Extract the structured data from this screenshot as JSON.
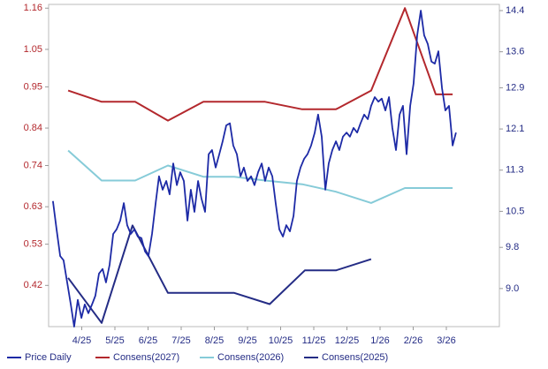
{
  "chart_data": {
    "type": "line",
    "xlim": [
      0,
      13.6
    ],
    "xticks": [
      {
        "value": 1,
        "label": "4/25"
      },
      {
        "value": 2,
        "label": "5/25"
      },
      {
        "value": 3,
        "label": "6/25"
      },
      {
        "value": 4,
        "label": "7/25"
      },
      {
        "value": 5,
        "label": "8/25"
      },
      {
        "value": 6,
        "label": "9/25"
      },
      {
        "value": 7,
        "label": "10/25"
      },
      {
        "value": 8,
        "label": "11/25"
      },
      {
        "value": 9,
        "label": "12/25"
      },
      {
        "value": 10,
        "label": "1/26"
      },
      {
        "value": 11,
        "label": "2/26"
      },
      {
        "value": 12,
        "label": "3/26"
      }
    ],
    "ylim": [
      0.31,
      1.17
    ],
    "yticks": [
      0.42,
      0.53,
      0.63,
      0.74,
      0.84,
      0.95,
      1.05,
      1.16
    ],
    "y2lim": [
      8.26,
      14.52
    ],
    "y2ticks": [
      {
        "value": 9,
        "label": "9.0"
      },
      9.8,
      10.5,
      11.3,
      12.1,
      12.9,
      13.6,
      14.4
    ],
    "grid": false,
    "legend": "bottom",
    "series": [
      {
        "name": "Price Daily",
        "color": "#1d2aa6",
        "axis": "y2",
        "x": [
          0.13,
          0.24,
          0.35,
          0.45,
          0.56,
          0.67,
          0.77,
          0.88,
          0.99,
          1.09,
          1.2,
          1.31,
          1.41,
          1.52,
          1.63,
          1.73,
          1.84,
          1.95,
          2.05,
          2.16,
          2.27,
          2.37,
          2.48,
          2.59,
          2.69,
          2.8,
          2.91,
          3.01,
          3.12,
          3.23,
          3.33,
          3.44,
          3.55,
          3.65,
          3.76,
          3.87,
          3.97,
          4.08,
          4.19,
          4.29,
          4.4,
          4.51,
          4.61,
          4.72,
          4.83,
          4.93,
          5.04,
          5.15,
          5.25,
          5.36,
          5.47,
          5.57,
          5.68,
          5.79,
          5.89,
          6,
          6.11,
          6.21,
          6.32,
          6.43,
          6.53,
          6.64,
          6.75,
          6.85,
          6.96,
          7.07,
          7.17,
          7.28,
          7.39,
          7.49,
          7.6,
          7.71,
          7.81,
          7.92,
          8.03,
          8.13,
          8.24,
          8.35,
          8.45,
          8.56,
          8.67,
          8.77,
          8.88,
          8.99,
          9.09,
          9.2,
          9.31,
          9.41,
          9.52,
          9.63,
          9.73,
          9.84,
          9.95,
          10.05,
          10.16,
          10.27,
          10.37,
          10.48,
          10.59,
          10.69,
          10.8,
          10.91,
          11.01,
          11.12,
          11.23,
          11.33,
          11.44,
          11.55,
          11.65,
          11.76,
          11.87,
          11.97,
          12.08,
          12.19,
          12.29
        ],
        "values": [
          10.7,
          10.15,
          9.63,
          9.55,
          9.12,
          8.69,
          8.26,
          8.78,
          8.43,
          8.69,
          8.52,
          8.69,
          8.86,
          9.29,
          9.38,
          9.12,
          9.46,
          10.06,
          10.15,
          10.32,
          10.66,
          10.23,
          10.06,
          10.15,
          10.01,
          9.98,
          9.72,
          9.63,
          10.06,
          10.66,
          11.18,
          10.92,
          11.09,
          10.83,
          11.43,
          11.01,
          11.26,
          11.09,
          10.32,
          10.92,
          10.49,
          11.09,
          10.75,
          10.49,
          11.61,
          11.69,
          11.35,
          11.61,
          11.86,
          12.17,
          12.21,
          11.78,
          11.61,
          11.18,
          11.35,
          11.09,
          11.18,
          11.01,
          11.26,
          11.43,
          11.09,
          11.35,
          11.18,
          10.66,
          10.15,
          10.01,
          10.23,
          10.11,
          10.41,
          11.09,
          11.35,
          11.52,
          11.61,
          11.78,
          12.03,
          12.38,
          11.95,
          10.92,
          11.43,
          11.69,
          11.86,
          11.69,
          11.95,
          12.03,
          11.95,
          12.12,
          12.03,
          12.21,
          12.38,
          12.29,
          12.55,
          12.72,
          12.63,
          12.69,
          12.46,
          12.72,
          12.12,
          11.69,
          12.38,
          12.55,
          11.61,
          12.55,
          12.98,
          13.92,
          14.4,
          13.92,
          13.75,
          13.41,
          13.37,
          13.61,
          12.89,
          12.46,
          12.55,
          11.78,
          12.03
        ]
      },
      {
        "name": "Consens(2027)",
        "color": "#b3282d",
        "x": [
          0.59,
          1.6,
          2.61,
          3.6,
          4.67,
          6.53,
          7.65,
          8.67,
          9.73,
          10.75,
          11.68,
          12.19
        ],
        "values": [
          0.94,
          0.91,
          0.91,
          0.86,
          0.91,
          0.91,
          0.89,
          0.89,
          0.94,
          1.16,
          0.93,
          0.93
        ]
      },
      {
        "name": "Consens(2026)",
        "color": "#86cbd8",
        "x": [
          0.59,
          1.6,
          2.61,
          3.6,
          4.67,
          5.6,
          6.53,
          7.65,
          8.67,
          9.73,
          10.75,
          12.19
        ],
        "values": [
          0.78,
          0.7,
          0.7,
          0.74,
          0.71,
          0.71,
          0.7,
          0.69,
          0.67,
          0.64,
          0.68,
          0.68
        ]
      },
      {
        "name": "Consens(2025)",
        "color": "#242c85",
        "x": [
          0.59,
          1.6,
          2.53,
          3.6,
          5.6,
          6.67,
          7.73,
          8.67,
          9.73
        ],
        "values": [
          0.44,
          0.32,
          0.58,
          0.4,
          0.4,
          0.37,
          0.46,
          0.46,
          0.49
        ]
      }
    ]
  }
}
